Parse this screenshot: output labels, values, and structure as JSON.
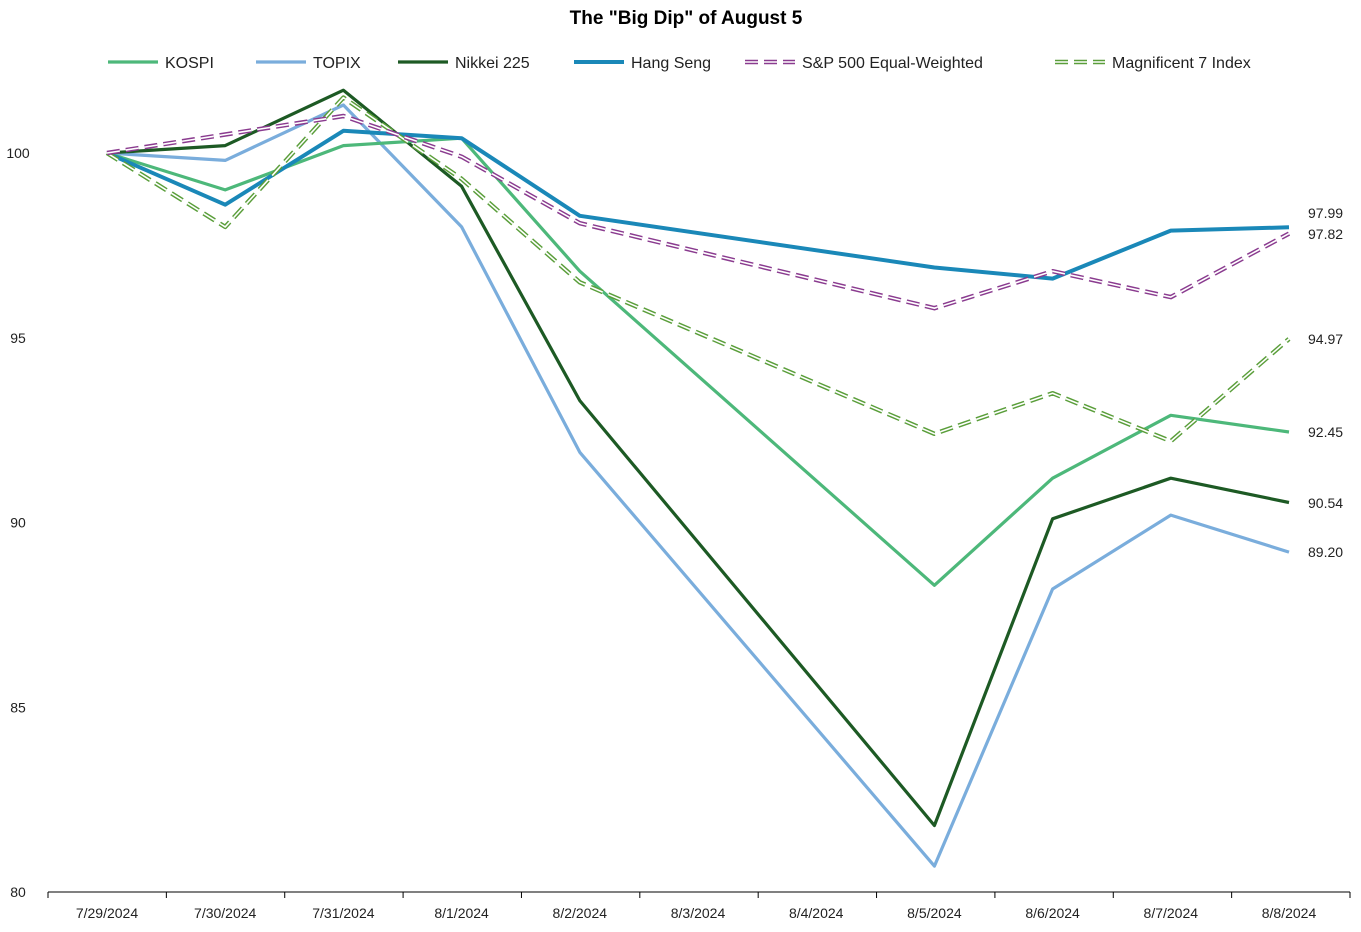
{
  "chart_data": {
    "type": "line",
    "title": "The \"Big Dip\" of August 5",
    "xlabel": "",
    "ylabel": "",
    "categories": [
      "7/29/2024",
      "7/30/2024",
      "7/31/2024",
      "8/1/2024",
      "8/2/2024",
      "8/3/2024",
      "8/4/2024",
      "8/5/2024",
      "8/6/2024",
      "8/7/2024",
      "8/8/2024"
    ],
    "ylim": [
      80,
      102
    ],
    "yticks": [
      "80",
      "85",
      "90",
      "95",
      "100"
    ],
    "legend_position": "top",
    "grid": false,
    "series": [
      {
        "name": "KOSPI",
        "color": "#4db87a",
        "style": "solid",
        "values": [
          100,
          99.0,
          100.2,
          100.4,
          96.8,
          null,
          null,
          88.3,
          91.2,
          92.9,
          92.45
        ]
      },
      {
        "name": "TOPIX",
        "color": "#7aaddc",
        "style": "solid",
        "values": [
          100,
          99.8,
          101.3,
          98.0,
          91.9,
          null,
          null,
          80.7,
          88.2,
          90.2,
          89.2
        ]
      },
      {
        "name": "Nikkei 225",
        "color": "#1d5a24",
        "style": "solid",
        "values": [
          100,
          100.2,
          101.7,
          99.1,
          93.3,
          null,
          null,
          81.8,
          90.1,
          91.2,
          90.54
        ]
      },
      {
        "name": "Hang Seng",
        "color": "#1a88b8",
        "style": "solid-thick",
        "values": [
          100,
          98.6,
          100.6,
          100.4,
          98.3,
          null,
          null,
          96.9,
          96.6,
          97.9,
          97.99
        ]
      },
      {
        "name": "S&P 500 Equal-Weighted",
        "color": "#8a3b8f",
        "style": "dashed-double",
        "values": [
          100,
          100.5,
          101.0,
          99.9,
          98.1,
          null,
          null,
          95.8,
          96.8,
          96.1,
          97.82
        ]
      },
      {
        "name": "Magnificent 7 Index",
        "color": "#5a9e3a",
        "style": "dashed-double",
        "values": [
          100,
          98.0,
          101.5,
          99.3,
          96.5,
          null,
          null,
          92.4,
          93.5,
          92.2,
          94.97
        ]
      }
    ],
    "end_labels": [
      "97.99",
      "97.82",
      "94.97",
      "92.45",
      "90.54",
      "89.20"
    ]
  }
}
